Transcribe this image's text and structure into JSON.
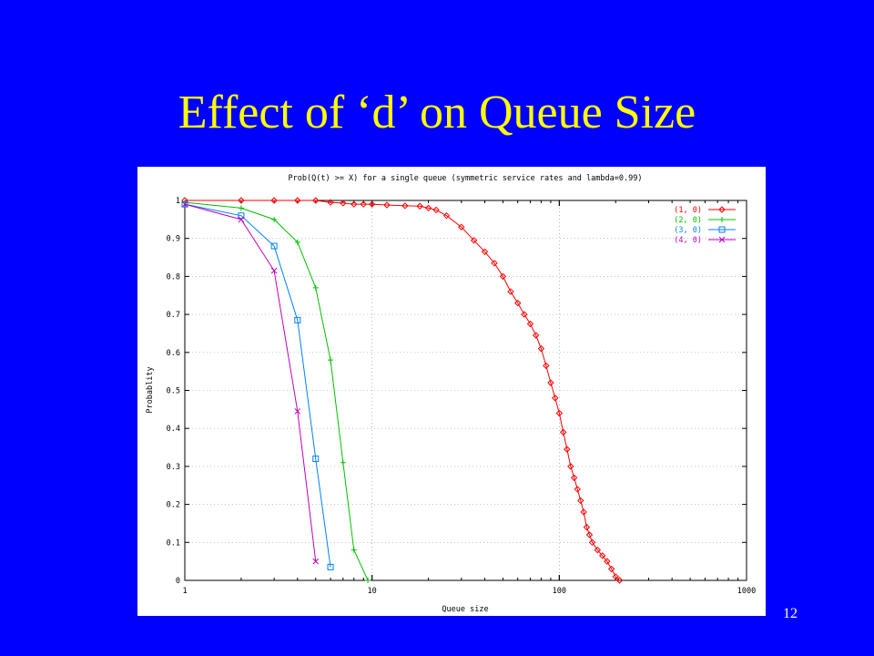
{
  "slide": {
    "title": "Effect of ‘d’ on Queue Size",
    "page_number": "12",
    "background_color": "#0000ff",
    "title_color": "#ffff00"
  },
  "chart_data": {
    "type": "line",
    "title": "Prob(Q(t) >= X) for a single queue (symmetric service rates and lambda=0.99)",
    "xlabel": "Queue size",
    "ylabel": "Probablity",
    "xscale": "log",
    "xlim": [
      1,
      1000
    ],
    "ylim": [
      0,
      1
    ],
    "x_ticks": [
      "1",
      "10",
      "100",
      "1000"
    ],
    "y_ticks": [
      "0",
      "0.1",
      "0.2",
      "0.3",
      "0.4",
      "0.5",
      "0.6",
      "0.7",
      "0.8",
      "0.9",
      "1"
    ],
    "grid": true,
    "legend_position": "top-right",
    "series": [
      {
        "name": "(1, 0)",
        "color": "#ff0000",
        "marker": "diamond",
        "x": [
          1,
          2,
          3,
          4,
          5,
          6,
          7,
          8,
          9,
          10,
          12,
          15,
          18,
          20,
          22,
          25,
          30,
          35,
          40,
          45,
          50,
          55,
          60,
          65,
          70,
          75,
          80,
          85,
          90,
          95,
          100,
          105,
          110,
          115,
          120,
          125,
          130,
          135,
          140,
          145,
          150,
          160,
          170,
          180,
          190,
          200,
          210
        ],
        "y": [
          1,
          1,
          1,
          1,
          1,
          0.995,
          0.993,
          0.99,
          0.99,
          0.99,
          0.988,
          0.986,
          0.985,
          0.98,
          0.975,
          0.96,
          0.93,
          0.895,
          0.865,
          0.835,
          0.8,
          0.76,
          0.73,
          0.7,
          0.675,
          0.645,
          0.61,
          0.565,
          0.52,
          0.48,
          0.44,
          0.39,
          0.345,
          0.3,
          0.27,
          0.24,
          0.21,
          0.18,
          0.14,
          0.12,
          0.1,
          0.08,
          0.065,
          0.05,
          0.03,
          0.01,
          0.0
        ]
      },
      {
        "name": "(2, 0)",
        "color": "#00c000",
        "marker": "plus",
        "x": [
          1,
          2,
          3,
          4,
          5,
          6,
          7,
          8,
          9.5
        ],
        "y": [
          0.995,
          0.98,
          0.95,
          0.89,
          0.77,
          0.58,
          0.31,
          0.08,
          0.0
        ]
      },
      {
        "name": "(3, 0)",
        "color": "#0080ff",
        "marker": "square",
        "x": [
          1,
          2,
          3,
          4,
          5,
          6
        ],
        "y": [
          0.99,
          0.96,
          0.88,
          0.685,
          0.32,
          0.035
        ]
      },
      {
        "name": "(4, 0)",
        "color": "#c000c0",
        "marker": "x",
        "x": [
          1,
          2,
          3,
          4,
          5
        ],
        "y": [
          0.99,
          0.95,
          0.815,
          0.445,
          0.05
        ]
      }
    ]
  }
}
